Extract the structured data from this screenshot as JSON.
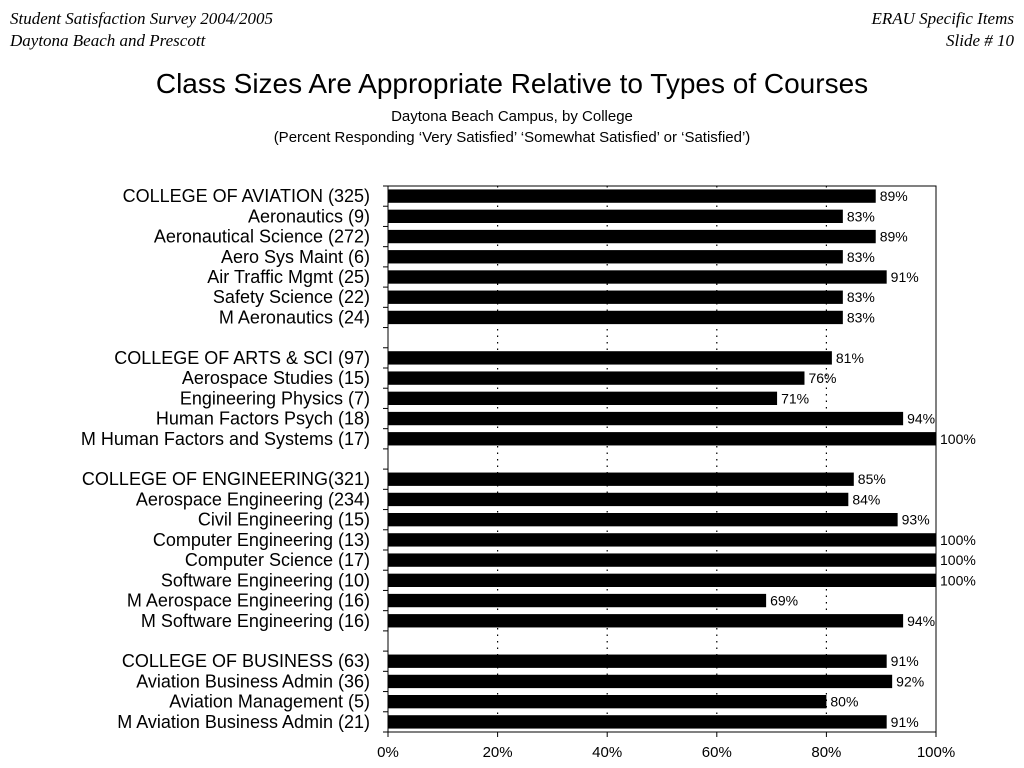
{
  "header": {
    "left_line1": "Student Satisfaction Survey 2004/2005",
    "left_line2": "Daytona Beach and Prescott",
    "right_line1": "ERAU Specific Items",
    "right_line2": "Slide # 10"
  },
  "chart_data": {
    "type": "bar",
    "orientation": "horizontal",
    "title": "Class Sizes Are Appropriate Relative to Types of Courses",
    "subtitle_line1": "Daytona Beach Campus, by College",
    "subtitle_line2": "(Percent Responding ‘Very Satisfied’ ‘Somewhat Satisfied’ or ‘Satisfied’)",
    "xlim": [
      0,
      100
    ],
    "xticks": [
      "0%",
      "20%",
      "40%",
      "60%",
      "80%",
      "100%"
    ],
    "grid": "vertical dotted",
    "value_suffix": "%",
    "categories": [
      "COLLEGE OF AVIATION (325)",
      "Aeronautics (9)",
      "Aeronautical Science (272)",
      "Aero Sys Maint (6)",
      "Air Traffic Mgmt (25)",
      "Safety Science (22)",
      "M Aeronautics (24)",
      "",
      "COLLEGE OF ARTS & SCI (97)",
      "Aerospace Studies (15)",
      "Engineering Physics (7)",
      "Human Factors Psych (18)",
      "M Human Factors and Systems (17)",
      "",
      "COLLEGE OF ENGINEERING(321)",
      "Aerospace Engineering (234)",
      "Civil Engineering (15)",
      "Computer Engineering (13)",
      "Computer Science (17)",
      "Software Engineering (10)",
      "M Aerospace Engineering (16)",
      "M Software Engineering (16)",
      "",
      "COLLEGE OF BUSINESS (63)",
      "Aviation Business Admin (36)",
      "Aviation Management (5)",
      "M Aviation Business Admin (21)"
    ],
    "values": [
      89,
      83,
      89,
      83,
      91,
      83,
      83,
      null,
      81,
      76,
      71,
      94,
      100,
      null,
      85,
      84,
      93,
      100,
      100,
      100,
      69,
      94,
      null,
      91,
      92,
      80,
      91
    ],
    "bar_color": "#000000"
  }
}
